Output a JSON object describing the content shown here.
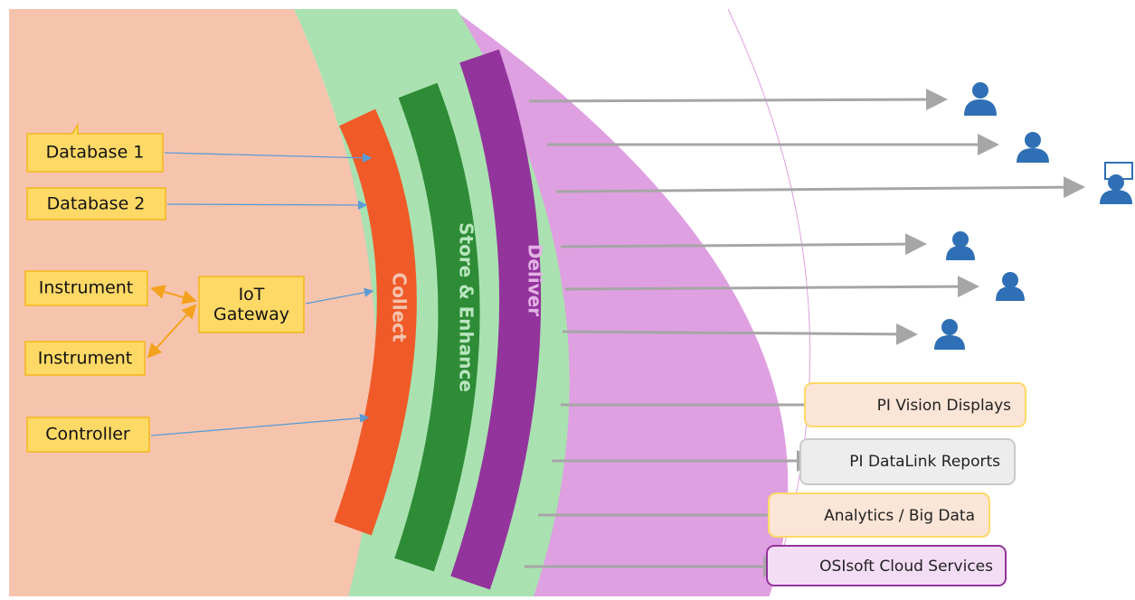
{
  "sources": [
    {
      "label": "Database 1"
    },
    {
      "label": "Database 2"
    },
    {
      "label": "Instrument"
    },
    {
      "label": "IoT Gateway"
    },
    {
      "label": "Instrument"
    },
    {
      "label": "Controller"
    }
  ],
  "bands": [
    {
      "label": "Collect"
    },
    {
      "label": "Store & Enhance"
    },
    {
      "label": "Deliver"
    }
  ],
  "outputs": [
    {
      "label": "PI Vision Displays"
    },
    {
      "label": "PI DataLink Reports"
    },
    {
      "label": "Analytics / Big Data"
    },
    {
      "label": "OSIsoft Cloud Services"
    }
  ]
}
